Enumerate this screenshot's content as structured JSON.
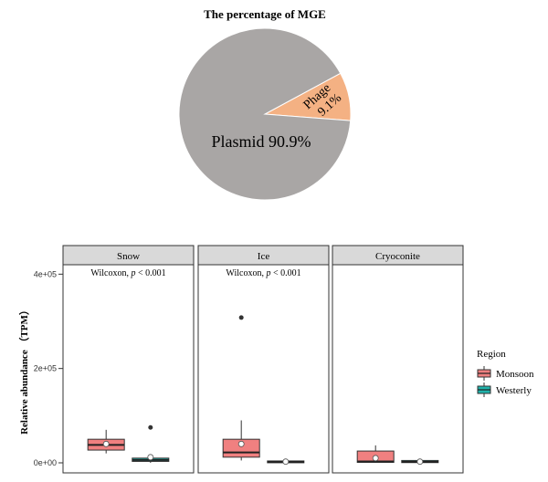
{
  "chart_data": [
    {
      "type": "pie",
      "title": "The percentage of MGE",
      "slices": [
        {
          "label": "Plasmid",
          "value": 90.9,
          "value_label": "90.9%",
          "color": "#a9a6a5"
        },
        {
          "label": "Phage",
          "value": 9.1,
          "value_label": "9.1%",
          "color": "#f4b183"
        }
      ]
    },
    {
      "type": "box",
      "ylabel": "Relative abundance （TPM）",
      "ylim": [
        0,
        420000
      ],
      "yticks": [
        {
          "value": 0,
          "label": "0e+00"
        },
        {
          "value": 200000,
          "label": "2e+05"
        },
        {
          "value": 400000,
          "label": "4e+05"
        }
      ],
      "panels": [
        {
          "name": "Snow",
          "test_label": "Wilcoxon, ",
          "p_label": "p",
          "p_value": " < 0.001",
          "boxes": [
            {
              "group": "Monsoon",
              "min": 20000,
              "q1": 27000,
              "median": 38000,
              "q3": 50000,
              "max": 70000,
              "mean": 40000,
              "outliers": []
            },
            {
              "group": "Westerly",
              "min": 0,
              "q1": 3000,
              "median": 6000,
              "q3": 10000,
              "max": 13000,
              "mean": 12000,
              "outliers": [
                75000
              ]
            }
          ]
        },
        {
          "name": "Ice",
          "test_label": "Wilcoxon, ",
          "p_label": "p",
          "p_value": " < 0.001",
          "boxes": [
            {
              "group": "Monsoon",
              "min": 5000,
              "q1": 12000,
              "median": 22000,
              "q3": 50000,
              "max": 90000,
              "mean": 40000,
              "outliers": [
                308000
              ]
            },
            {
              "group": "Westerly",
              "min": 0,
              "q1": 1000,
              "median": 2000,
              "q3": 4000,
              "max": 5000,
              "mean": 2500,
              "outliers": []
            }
          ]
        },
        {
          "name": "Cryoconite",
          "test_label": "",
          "p_label": "",
          "p_value": "",
          "boxes": [
            {
              "group": "Monsoon",
              "min": 0,
              "q1": 1000,
              "median": 3000,
              "q3": 25000,
              "max": 37000,
              "mean": 10000,
              "outliers": []
            },
            {
              "group": "Westerly",
              "min": 0,
              "q1": 500,
              "median": 2000,
              "q3": 5000,
              "max": 6000,
              "mean": 2500,
              "outliers": []
            }
          ]
        }
      ],
      "legend": {
        "title": "Region",
        "placement": "right",
        "items": [
          {
            "label": "Monsoon",
            "color": "#f08080"
          },
          {
            "label": "Westerly",
            "color": "#20b2aa"
          }
        ]
      }
    }
  ]
}
